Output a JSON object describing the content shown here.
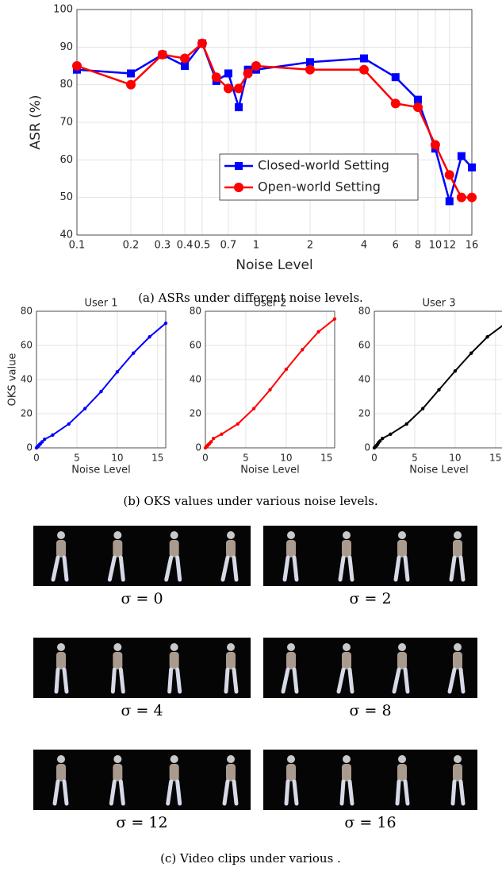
{
  "chart_data": [
    {
      "type": "line",
      "x_label": "Noise Level",
      "y_label": "ASR (%)",
      "log_x": true,
      "grid": true,
      "legend": "lower right",
      "x": [
        0.1,
        0.2,
        0.3,
        0.4,
        0.5,
        0.6,
        0.7,
        0.8,
        0.9,
        1,
        2,
        4,
        6,
        8,
        10,
        12,
        14,
        16
      ],
      "series": [
        {
          "name": "Closed-world Setting",
          "color": "#0000ff",
          "marker": "square",
          "values": [
            84,
            83,
            88,
            85,
            91,
            81,
            83,
            74,
            84,
            84,
            86,
            87,
            82,
            76,
            63,
            49,
            61,
            58
          ]
        },
        {
          "name": "Open-world Setting",
          "color": "#ff0000",
          "marker": "circle",
          "values": [
            85,
            80,
            88,
            87,
            91,
            82,
            79,
            79,
            83,
            85,
            84,
            84,
            75,
            74,
            64,
            56,
            50,
            50
          ]
        }
      ],
      "xlim": [
        0.1,
        16
      ],
      "xticks": [
        0.1,
        0.2,
        0.3,
        0.4,
        0.5,
        0.7,
        1,
        2,
        4,
        6,
        8,
        10,
        12,
        16
      ],
      "ylim": [
        40,
        100
      ],
      "yticks": [
        40,
        50,
        60,
        70,
        80,
        90,
        100
      ]
    },
    {
      "type": "line",
      "title": "User 1",
      "x_label": "Noise Level",
      "y_label": "OKS value",
      "grid": true,
      "x": [
        0,
        0.1,
        0.2,
        0.3,
        0.4,
        0.5,
        0.7,
        1,
        2,
        4,
        6,
        8,
        10,
        12,
        14,
        16
      ],
      "series": [
        {
          "color": "#0000ff",
          "marker": "dot",
          "values": [
            0,
            0.5,
            1,
            1.5,
            2,
            2.5,
            3.5,
            5,
            7.5,
            14,
            23,
            33,
            44.5,
            55.5,
            65,
            73
          ]
        }
      ],
      "xlim": [
        0,
        16
      ],
      "xticks": [
        0,
        5,
        10,
        15
      ],
      "ylim": [
        0,
        80
      ],
      "yticks": [
        0,
        20,
        40,
        60,
        80
      ]
    },
    {
      "type": "line",
      "title": "User 2",
      "x_label": "Noise Level",
      "grid": true,
      "x": [
        0,
        0.1,
        0.2,
        0.3,
        0.4,
        0.5,
        0.7,
        1,
        2,
        4,
        6,
        8,
        10,
        12,
        14,
        16
      ],
      "series": [
        {
          "color": "#ff0000",
          "marker": "dot",
          "values": [
            0,
            0.5,
            1,
            1.5,
            2,
            2.5,
            3.5,
            5.5,
            8,
            14,
            23,
            34,
            46,
            57.5,
            68,
            75.5
          ]
        }
      ],
      "xlim": [
        0,
        16
      ],
      "xticks": [
        0,
        5,
        10,
        15
      ],
      "ylim": [
        0,
        80
      ],
      "yticks": [
        0,
        20,
        40,
        60,
        80
      ]
    },
    {
      "type": "line",
      "title": "User 3",
      "x_label": "Noise Level",
      "grid": true,
      "x": [
        0,
        0.1,
        0.2,
        0.3,
        0.4,
        0.5,
        0.7,
        1,
        2,
        4,
        6,
        8,
        10,
        12,
        14,
        16
      ],
      "series": [
        {
          "color": "#000000",
          "marker": "dot",
          "values": [
            0,
            0.5,
            1,
            1.5,
            2,
            3,
            4,
            5.5,
            8,
            14,
            23,
            34,
            45,
            55.5,
            65,
            72
          ]
        }
      ],
      "xlim": [
        0,
        16
      ],
      "xticks": [
        0,
        5,
        10,
        15
      ],
      "ylim": [
        0,
        80
      ],
      "yticks": [
        0,
        20,
        40,
        60,
        80
      ]
    }
  ],
  "captions": [
    "(a)  ASRs under different noise levels.",
    "(b)  OKS values under various noise levels.",
    "(c)  Video clips under various ."
  ],
  "clips": [
    {
      "label": "σ = 0"
    },
    {
      "label": "σ = 2"
    },
    {
      "label": "σ = 4"
    },
    {
      "label": "σ = 8"
    },
    {
      "label": "σ = 12"
    },
    {
      "label": "σ = 16"
    }
  ]
}
